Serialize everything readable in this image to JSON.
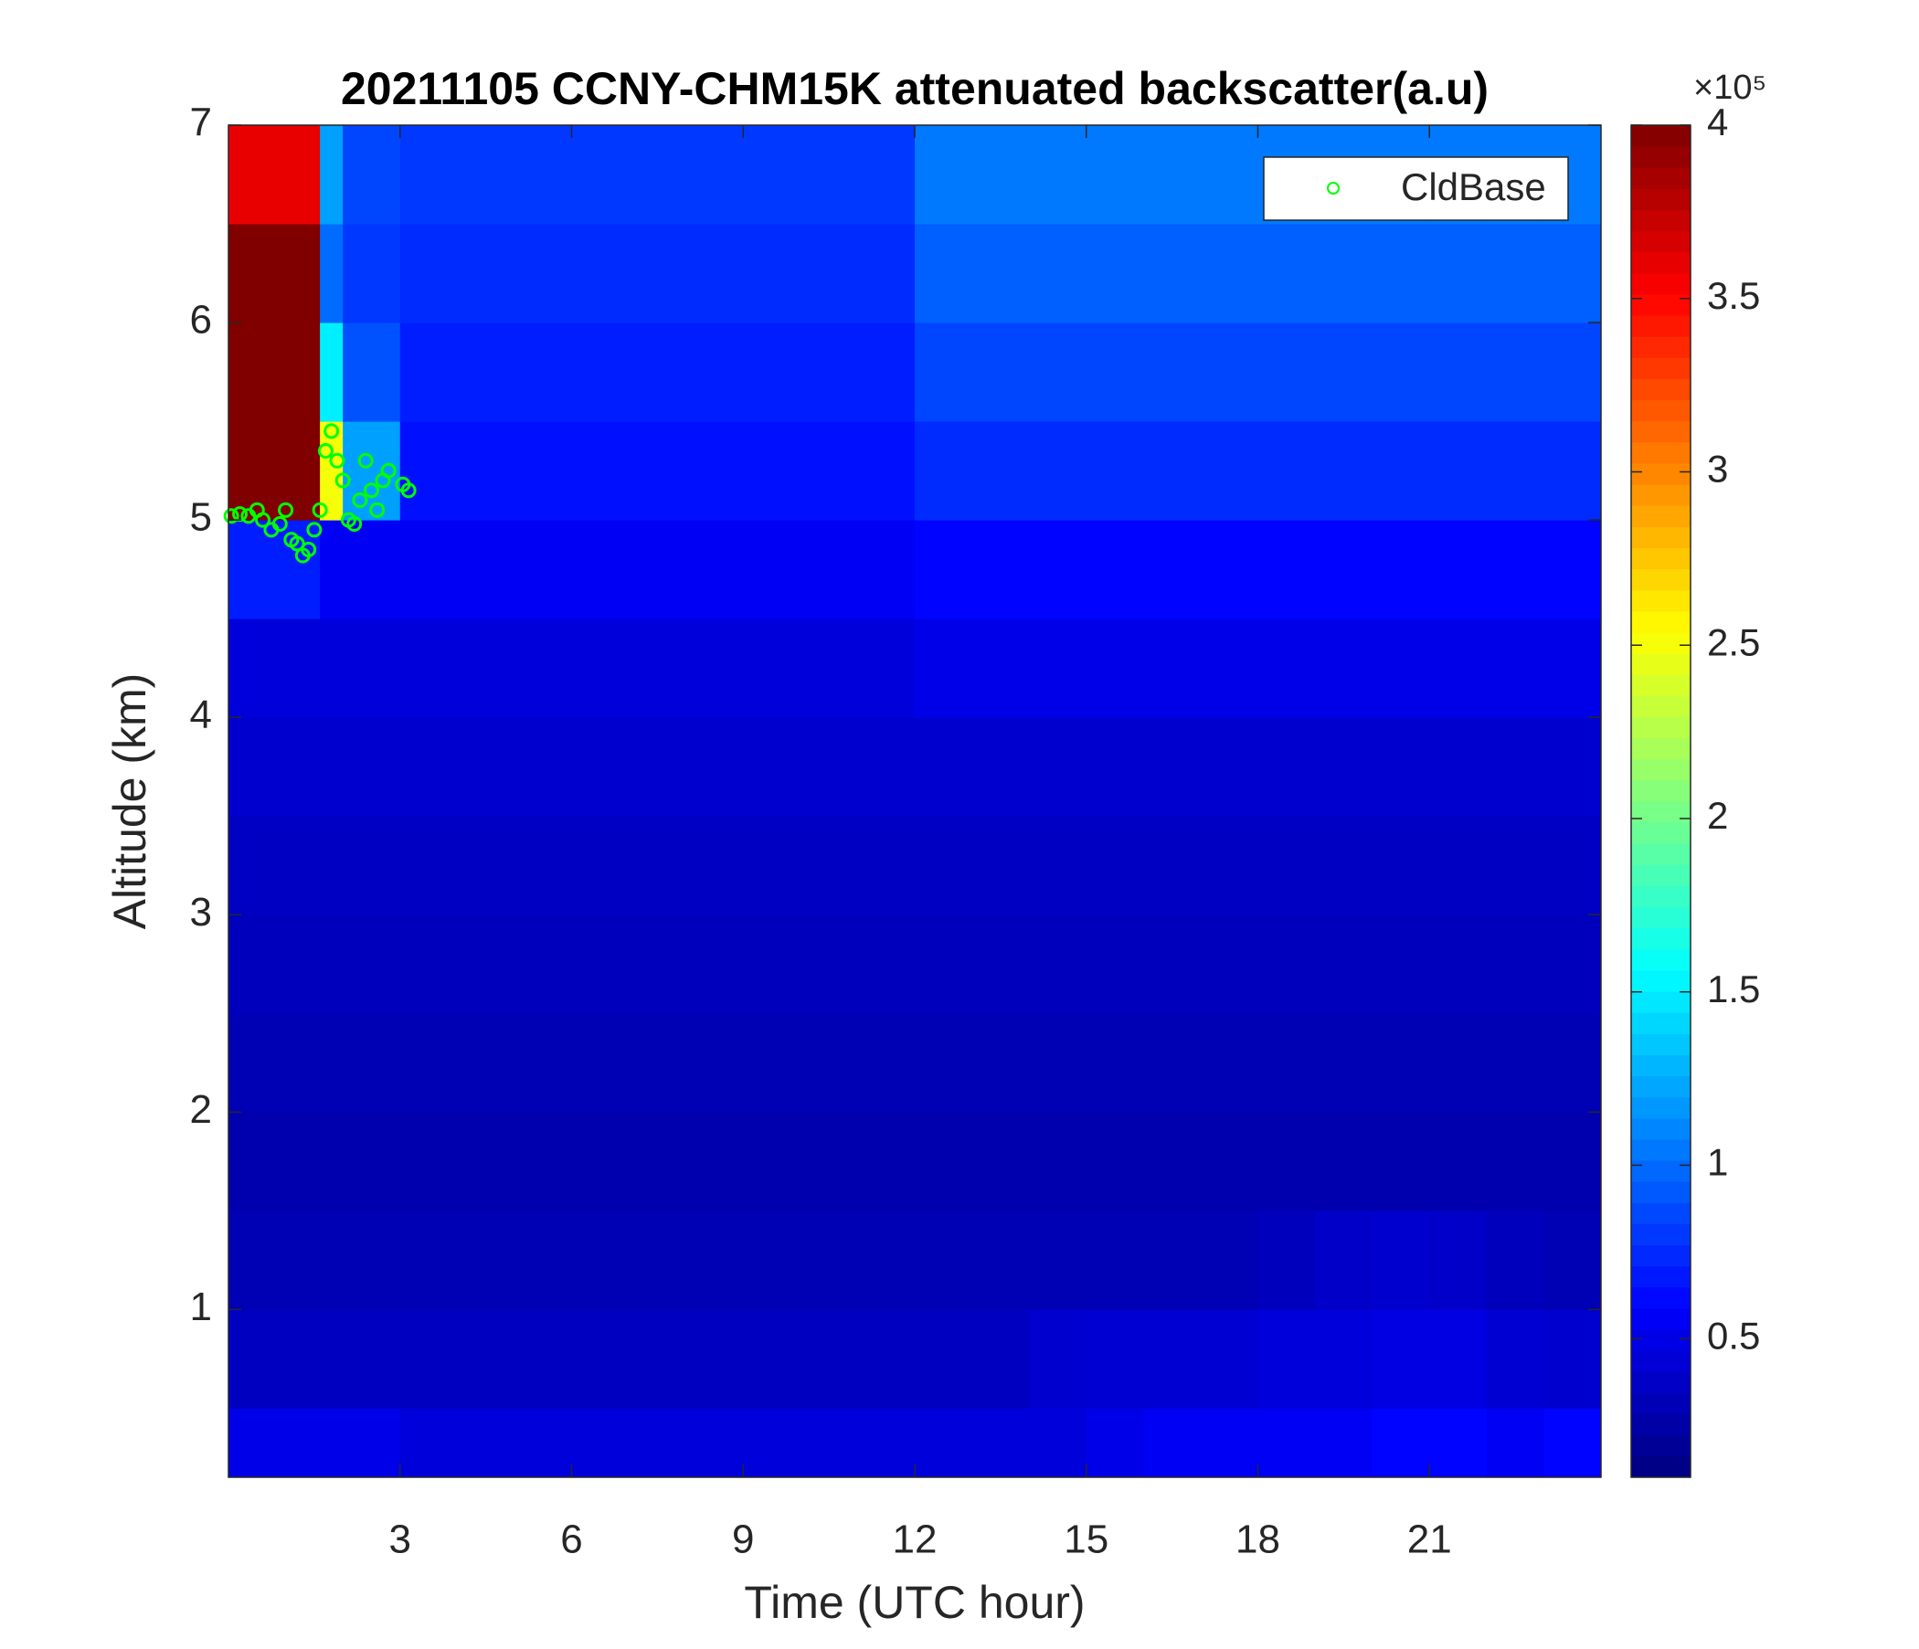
{
  "chart_data": {
    "type": "heatmap",
    "title": "20211105 CCNY-CHM15K attenuated backscatter(a.u)",
    "x_label": "Time (UTC hour)",
    "y_label": "Altitude (km)",
    "xlim": [
      0,
      24
    ],
    "ylim": [
      0.15,
      7
    ],
    "xticks": [
      3,
      6,
      9,
      12,
      15,
      18,
      21
    ],
    "yticks": [
      1,
      2,
      3,
      4,
      5,
      6,
      7
    ],
    "colormap": "jet",
    "clim": [
      0.1,
      4
    ],
    "colorbar_ticks": [
      0.5,
      1,
      1.5,
      2,
      2.5,
      3,
      3.5,
      4
    ],
    "colorbar_exponent_label": "×10⁵",
    "x_bins": [
      0,
      1.6,
      2,
      3,
      4,
      5,
      6,
      7,
      8,
      9,
      10,
      11,
      12,
      13,
      14,
      15,
      16,
      17,
      18,
      19,
      20,
      21,
      22,
      23,
      24
    ],
    "y_bins": [
      0.15,
      0.5,
      1,
      1.5,
      2,
      2.5,
      3,
      3.5,
      4,
      4.5,
      5,
      5.5,
      6,
      6.5,
      7
    ],
    "z": [
      [
        0.5,
        0.5,
        0.5,
        0.45,
        0.45,
        0.45,
        0.45,
        0.45,
        0.45,
        0.45,
        0.45,
        0.45,
        0.45,
        0.45,
        0.45,
        0.5,
        0.55,
        0.55,
        0.55,
        0.55,
        0.6,
        0.6,
        0.55,
        0.6
      ],
      [
        0.35,
        0.35,
        0.35,
        0.35,
        0.35,
        0.35,
        0.35,
        0.35,
        0.35,
        0.35,
        0.35,
        0.35,
        0.35,
        0.35,
        0.4,
        0.42,
        0.42,
        0.42,
        0.45,
        0.45,
        0.48,
        0.48,
        0.42,
        0.4
      ],
      [
        0.3,
        0.3,
        0.3,
        0.3,
        0.3,
        0.3,
        0.3,
        0.3,
        0.3,
        0.3,
        0.3,
        0.3,
        0.3,
        0.3,
        0.3,
        0.3,
        0.3,
        0.3,
        0.33,
        0.38,
        0.4,
        0.38,
        0.33,
        0.3
      ],
      [
        0.28,
        0.28,
        0.28,
        0.28,
        0.28,
        0.28,
        0.28,
        0.28,
        0.28,
        0.28,
        0.28,
        0.28,
        0.28,
        0.28,
        0.28,
        0.28,
        0.28,
        0.28,
        0.28,
        0.28,
        0.28,
        0.28,
        0.28,
        0.28
      ],
      [
        0.3,
        0.3,
        0.3,
        0.3,
        0.3,
        0.3,
        0.3,
        0.3,
        0.3,
        0.3,
        0.3,
        0.3,
        0.3,
        0.3,
        0.3,
        0.3,
        0.3,
        0.3,
        0.3,
        0.3,
        0.3,
        0.3,
        0.3,
        0.3
      ],
      [
        0.33,
        0.33,
        0.33,
        0.33,
        0.33,
        0.33,
        0.33,
        0.33,
        0.33,
        0.33,
        0.33,
        0.33,
        0.33,
        0.33,
        0.33,
        0.33,
        0.33,
        0.33,
        0.33,
        0.33,
        0.33,
        0.33,
        0.33,
        0.33
      ],
      [
        0.36,
        0.36,
        0.36,
        0.36,
        0.36,
        0.36,
        0.36,
        0.36,
        0.36,
        0.36,
        0.36,
        0.36,
        0.36,
        0.36,
        0.36,
        0.36,
        0.36,
        0.36,
        0.36,
        0.36,
        0.36,
        0.36,
        0.36,
        0.36
      ],
      [
        0.4,
        0.4,
        0.4,
        0.4,
        0.4,
        0.4,
        0.4,
        0.4,
        0.4,
        0.4,
        0.4,
        0.4,
        0.4,
        0.4,
        0.4,
        0.4,
        0.4,
        0.4,
        0.4,
        0.4,
        0.4,
        0.4,
        0.4,
        0.4
      ],
      [
        0.45,
        0.45,
        0.45,
        0.45,
        0.45,
        0.45,
        0.45,
        0.45,
        0.45,
        0.45,
        0.45,
        0.45,
        0.5,
        0.5,
        0.5,
        0.5,
        0.5,
        0.5,
        0.5,
        0.5,
        0.5,
        0.5,
        0.5,
        0.5
      ],
      [
        0.7,
        0.55,
        0.55,
        0.55,
        0.55,
        0.55,
        0.55,
        0.55,
        0.55,
        0.55,
        0.55,
        0.55,
        0.6,
        0.6,
        0.6,
        0.6,
        0.6,
        0.6,
        0.6,
        0.6,
        0.6,
        0.6,
        0.6,
        0.6
      ],
      [
        4,
        2.5,
        1.2,
        0.65,
        0.65,
        0.65,
        0.65,
        0.65,
        0.65,
        0.65,
        0.65,
        0.65,
        0.75,
        0.75,
        0.75,
        0.75,
        0.75,
        0.75,
        0.75,
        0.75,
        0.75,
        0.75,
        0.75,
        0.75
      ],
      [
        4,
        1.5,
        0.9,
        0.7,
        0.7,
        0.7,
        0.7,
        0.7,
        0.7,
        0.7,
        0.7,
        0.7,
        0.85,
        0.85,
        0.85,
        0.85,
        0.85,
        0.85,
        0.85,
        0.85,
        0.85,
        0.85,
        0.85,
        0.85
      ],
      [
        4,
        1.0,
        0.8,
        0.75,
        0.75,
        0.75,
        0.75,
        0.75,
        0.75,
        0.75,
        0.75,
        0.75,
        0.95,
        0.95,
        0.95,
        0.95,
        0.95,
        0.95,
        0.95,
        0.95,
        0.95,
        0.95,
        0.95,
        0.95
      ],
      [
        3.6,
        1.2,
        0.85,
        0.8,
        0.8,
        0.8,
        0.8,
        0.8,
        0.8,
        0.8,
        0.8,
        0.8,
        1.05,
        1.05,
        1.05,
        1.05,
        1.05,
        1.05,
        1.05,
        1.05,
        1.05,
        1.05,
        1.05,
        1.05
      ]
    ],
    "series": [
      {
        "name": "CldBase",
        "color": "#00ff00",
        "x": [
          0.05,
          0.2,
          0.35,
          0.5,
          0.6,
          0.75,
          0.9,
          1.0,
          1.1,
          1.2,
          1.3,
          1.4,
          1.5,
          1.6,
          1.7,
          1.8,
          1.9,
          2.0,
          2.1,
          2.2,
          2.3,
          2.4,
          2.5,
          2.6,
          2.7,
          2.8,
          3.05,
          3.15
        ],
        "y": [
          5.02,
          5.03,
          5.02,
          5.05,
          5.0,
          4.95,
          4.98,
          5.05,
          4.9,
          4.88,
          4.82,
          4.85,
          4.95,
          5.05,
          5.35,
          5.45,
          5.3,
          5.2,
          5.0,
          4.98,
          5.1,
          5.3,
          5.15,
          5.05,
          5.2,
          5.25,
          5.18,
          5.15
        ]
      }
    ],
    "legend": "upper right"
  }
}
